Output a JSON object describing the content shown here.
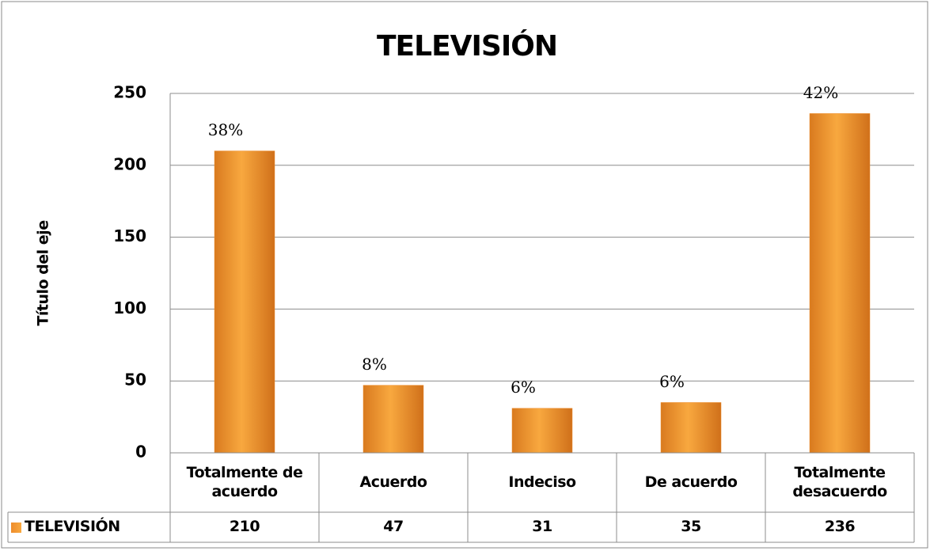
{
  "chart_data": {
    "type": "bar",
    "title": "TELEVISIÓN",
    "y_axis_label": "Título del eje",
    "categories": [
      "Totalmente de acuerdo",
      "Acuerdo",
      "Indeciso",
      "De acuerdo",
      "Totalmente desacuerdo"
    ],
    "series": [
      {
        "name": "TELEVISIÓN",
        "color": "#ee8d2c",
        "values": [
          210,
          47,
          31,
          35,
          236
        ]
      }
    ],
    "data_labels": [
      "38%",
      "8%",
      "6%",
      "6%",
      "42%"
    ],
    "ylim": [
      0,
      250
    ],
    "yticks": [
      0,
      50,
      100,
      150,
      200,
      250
    ],
    "grid": true,
    "data_table": true
  }
}
